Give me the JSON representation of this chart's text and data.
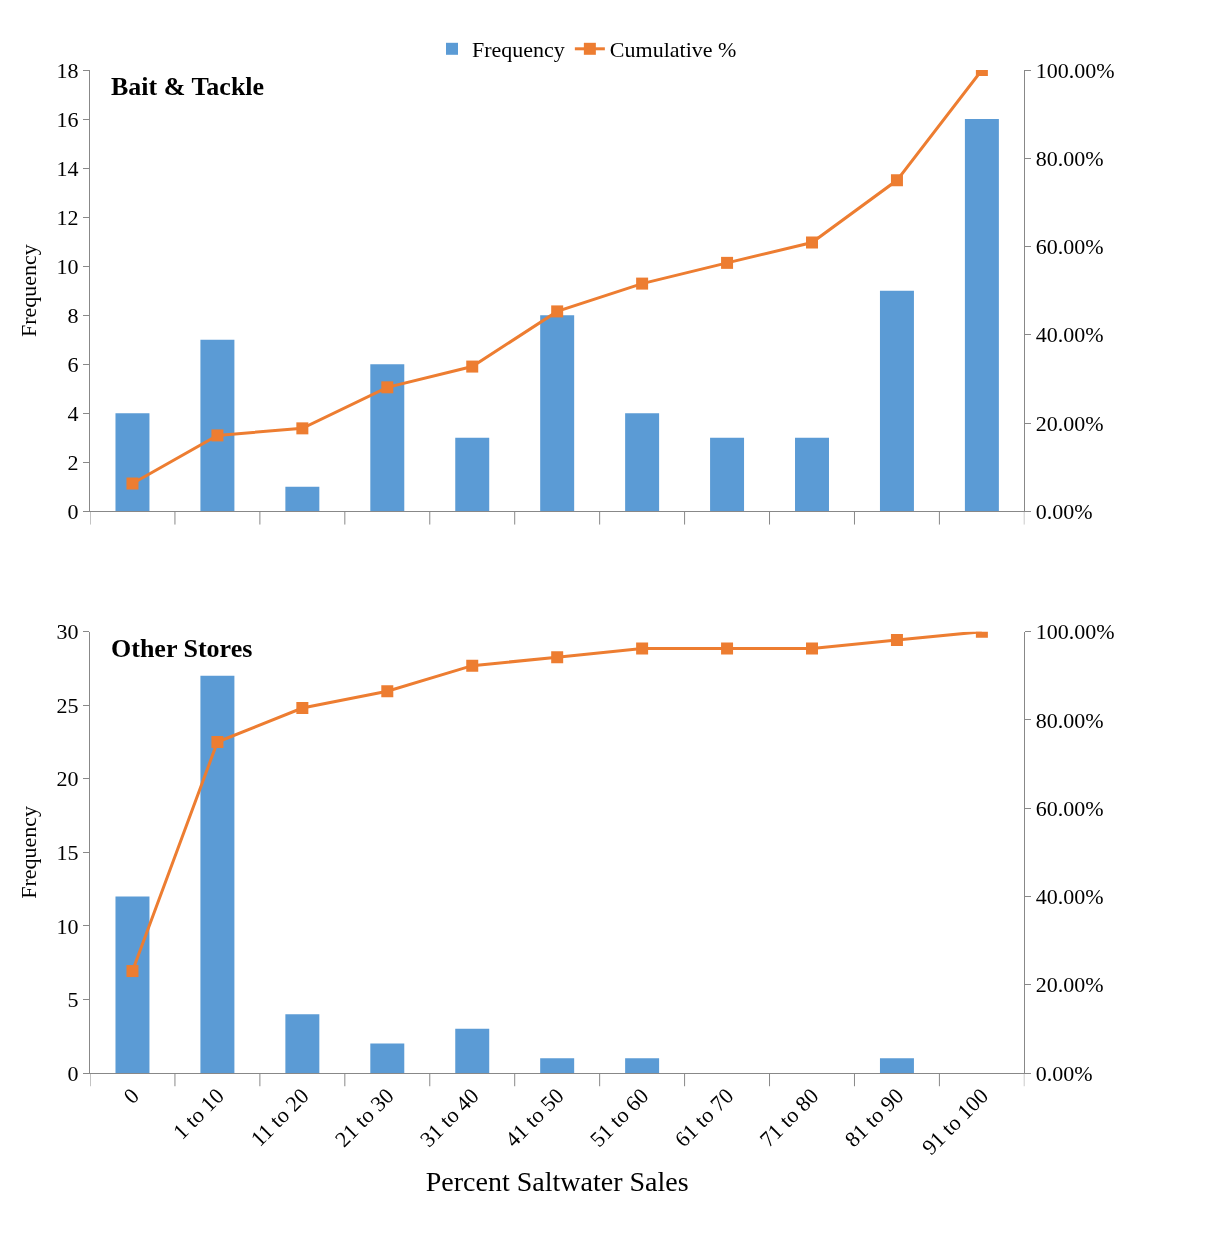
{
  "chart_data": [
    {
      "type": "bar",
      "title": "Bait & Tackle",
      "ylabel": "Frequency",
      "categories": [
        null,
        null,
        null,
        null,
        null,
        null,
        null,
        null,
        null,
        null,
        null
      ],
      "series": [
        {
          "name": "Frequency",
          "color": "#5b9bd5",
          "values": [
            4,
            7,
            1,
            6,
            3,
            8,
            4,
            3,
            3,
            9,
            16
          ]
        },
        {
          "name": "Cumulative %",
          "type": "line",
          "axis": "y2",
          "color": "#ed7d31",
          "marker": "square",
          "values": [
            6.3,
            17.2,
            18.8,
            28.1,
            32.8,
            45.3,
            51.6,
            56.3,
            60.9,
            75,
            100
          ]
        }
      ],
      "ylim": [
        0,
        18
      ],
      "yticks": [
        0,
        2,
        4,
        6,
        8,
        10,
        12,
        14,
        16,
        18
      ],
      "y2lim": [
        0,
        100
      ],
      "y2ticks": [
        {
          "value": 0,
          "label": "0.00%"
        },
        {
          "value": 20,
          "label": "20.00%"
        },
        {
          "value": 40,
          "label": "40.00%"
        },
        {
          "value": 60,
          "label": "60.00%"
        },
        {
          "value": 80,
          "label": "80.00%"
        },
        {
          "value": 100,
          "label": "100.00%"
        }
      ],
      "tick_labels": "y",
      "legend": "top",
      "grid": false
    },
    {
      "type": "bar",
      "title": "Other Stores",
      "ylabel": "Frequency",
      "xlabel": "Percent Saltwater Sales",
      "categories": [
        "0",
        "1 to 10",
        "11 to 20",
        "21 to 30",
        "31 to 40",
        "41 to 50",
        "51 to 60",
        "61 to 70",
        "71 to 80",
        "81 to 90",
        "91 to 100"
      ],
      "series": [
        {
          "color": "#5b9bd5",
          "values": [
            12,
            27,
            4,
            2,
            3,
            1,
            1,
            0,
            0,
            1,
            0
          ]
        },
        {
          "type": "line",
          "axis": "y2",
          "color": "#ed7d31",
          "marker": "square",
          "values": [
            23.1,
            75.0,
            82.7,
            86.5,
            92.3,
            94.2,
            96.2,
            96.2,
            96.2,
            98.1,
            100.0
          ]
        }
      ],
      "ylim": [
        0,
        30
      ],
      "yticks": [
        0,
        5,
        10,
        15,
        20,
        25,
        30
      ],
      "y2lim": [
        0,
        100
      ],
      "y2ticks": [
        {
          "value": 0,
          "label": "0.00%"
        },
        {
          "value": 20,
          "label": "20.00%"
        },
        {
          "value": 40,
          "label": "40.00%"
        },
        {
          "value": 60,
          "label": "60.00%"
        },
        {
          "value": 80,
          "label": "80.00%"
        },
        {
          "value": 100,
          "label": "100.00%"
        }
      ],
      "legend": false,
      "grid": false
    }
  ]
}
